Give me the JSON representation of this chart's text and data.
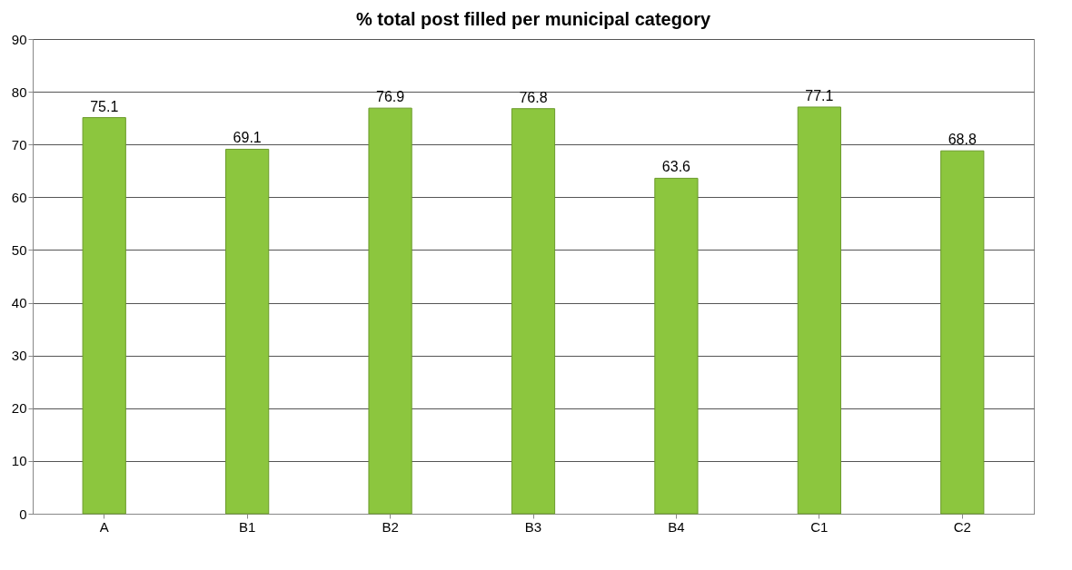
{
  "chart_data": {
    "type": "bar",
    "title": "% total post filled per municipal category",
    "categories": [
      "A",
      "B1",
      "B2",
      "B3",
      "B4",
      "C1",
      "C2"
    ],
    "values": [
      75.1,
      69.1,
      76.9,
      76.8,
      63.6,
      77.1,
      68.8
    ],
    "color": "#8cc63e",
    "ylim": [
      0,
      90
    ],
    "yticks": [
      0,
      10,
      20,
      30,
      40,
      50,
      60,
      70,
      80,
      90
    ],
    "grid": "y",
    "data_labels": true
  }
}
